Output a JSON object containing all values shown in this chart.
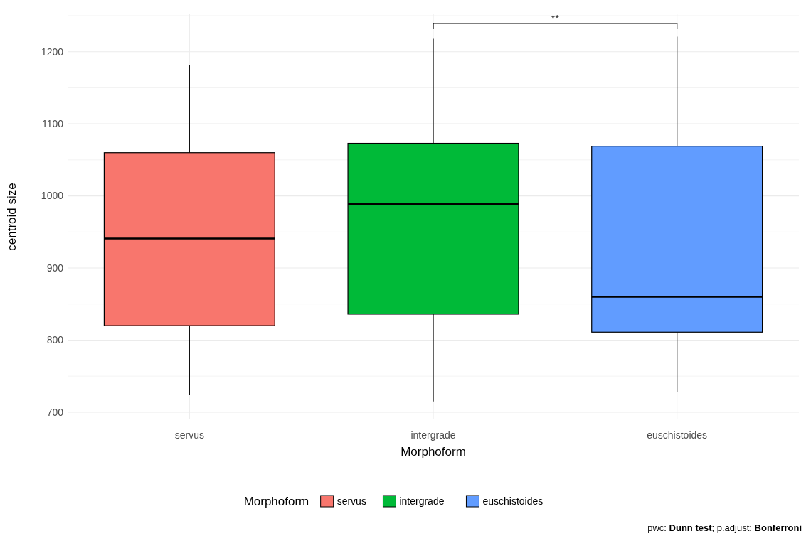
{
  "chart_data": {
    "type": "box",
    "xlabel": "Morphoform",
    "ylabel": "centroid size",
    "legend_title": "Morphoform",
    "categories": [
      "servus",
      "intergrade",
      "euschistoides"
    ],
    "series": [
      {
        "name": "servus",
        "color": "#f8766d",
        "boxes": [
          {
            "low": 724,
            "q1": 820,
            "median": 941,
            "q3": 1060,
            "high": 1182
          },
          null,
          null
        ]
      },
      {
        "name": "intergrade",
        "color": "#00ba38",
        "boxes": [
          null,
          {
            "low": 715,
            "q1": 836,
            "median": 989,
            "q3": 1073,
            "high": 1218
          },
          null
        ]
      },
      {
        "name": "euschistoides",
        "color": "#619cff",
        "boxes": [
          null,
          null,
          {
            "low": 728,
            "q1": 811,
            "median": 860,
            "q3": 1069,
            "high": 1221
          }
        ]
      }
    ],
    "ylim": [
      690,
      1252
    ],
    "yticks": [
      700,
      {
        "value": 750,
        "label": null
      },
      800,
      {
        "value": 850,
        "label": null
      },
      900,
      {
        "value": 950,
        "label": null
      },
      1000,
      {
        "value": 1050,
        "label": null
      },
      1100,
      {
        "value": 1150,
        "label": null
      },
      1200,
      {
        "value": 1250,
        "label": null
      }
    ],
    "grid": true,
    "legend": "bottom",
    "annotations": [
      "**",
      "pwc: Dunn test; p.adjust: Bonferroni"
    ]
  }
}
